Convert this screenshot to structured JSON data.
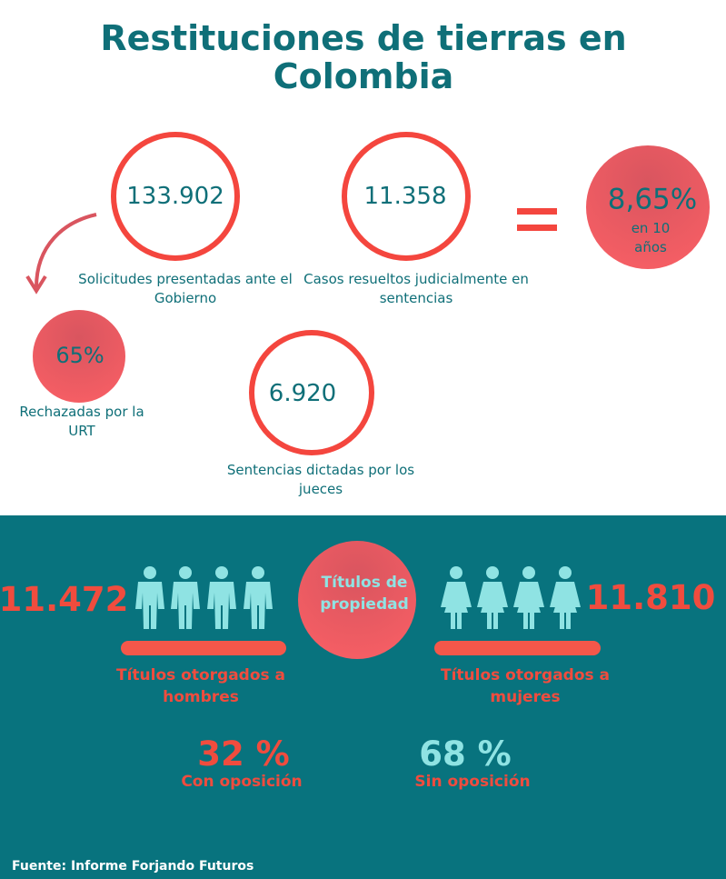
{
  "title": "Restituciones de tierras en Colombia",
  "stats": [
    {
      "value": "133.902",
      "label": "Solicitudes presentadas ante el Gobierno"
    },
    {
      "value": "11.358",
      "label": "Casos resueltos judicialmente en sentencias"
    },
    {
      "value": "6.920",
      "label": "Sentencias dictadas por los jueces"
    }
  ],
  "result": {
    "value": "8,65%",
    "label": "en 10 años"
  },
  "rejected": {
    "value": "65%",
    "label": "Rechazadas por la URT"
  },
  "titles": {
    "center": "Títulos de propiedad",
    "men": {
      "value": "11.472",
      "label": "Títulos otorgados a hombres"
    },
    "women": {
      "value": "11.810",
      "label": "Títulos otorgados a mujeres"
    }
  },
  "opposition": [
    {
      "value": "32 %",
      "label": "Con oposición"
    },
    {
      "value": "68 %",
      "label": "Sin oposición"
    }
  ],
  "source": "Fuente: Informe Forjando Futuros"
}
